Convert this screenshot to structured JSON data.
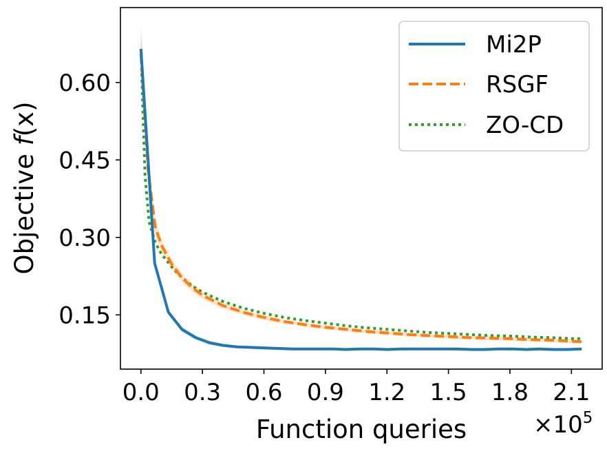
{
  "chart_data": {
    "type": "line",
    "title": "",
    "xlabel": "Function queries",
    "ylabel_prefix": "Objective ",
    "ylabel_fn": "f",
    "ylabel_arg": "(x)",
    "x_offset_text": "×10",
    "x_offset_exp": "5",
    "xlim": [
      -0.1,
      2.25
    ],
    "ylim": [
      0.045,
      0.745
    ],
    "xticks": [
      0.0,
      0.3,
      0.6,
      0.9,
      1.2,
      1.5,
      1.8,
      2.1
    ],
    "xtick_labels": [
      "0.0",
      "0.3",
      "0.6",
      "0.9",
      "1.2",
      "1.5",
      "1.8",
      "2.1"
    ],
    "yticks": [
      0.15,
      0.3,
      0.45,
      0.6
    ],
    "ytick_labels": [
      "0.15",
      "0.30",
      "0.45",
      "0.60"
    ],
    "legend_position": "top-right",
    "grid": false,
    "series": [
      {
        "name": "Mi2P",
        "color": "#1f77b4",
        "style": "solid",
        "x": [
          0.0,
          0.067,
          0.134,
          0.2,
          0.267,
          0.335,
          0.4,
          0.47,
          0.54,
          0.6,
          0.67,
          0.74,
          0.8,
          0.87,
          0.94,
          1.0,
          1.07,
          1.14,
          1.2,
          1.27,
          1.34,
          1.41,
          1.47,
          1.54,
          1.61,
          1.68,
          1.74,
          1.81,
          1.88,
          1.94,
          2.01,
          2.08,
          2.15
        ],
        "values": [
          0.665,
          0.25,
          0.155,
          0.122,
          0.106,
          0.096,
          0.091,
          0.088,
          0.087,
          0.086,
          0.085,
          0.084,
          0.084,
          0.084,
          0.084,
          0.083,
          0.084,
          0.084,
          0.083,
          0.084,
          0.084,
          0.084,
          0.084,
          0.084,
          0.083,
          0.083,
          0.084,
          0.084,
          0.083,
          0.084,
          0.083,
          0.083,
          0.084
        ],
        "band": [
          0.04,
          0.006,
          0.005,
          0.005,
          0.004,
          0.004,
          0.003,
          0.003,
          0.003,
          0.003,
          0.003,
          0.003,
          0.003,
          0.003,
          0.003,
          0.003,
          0.003,
          0.003,
          0.003,
          0.003,
          0.003,
          0.003,
          0.003,
          0.003,
          0.003,
          0.003,
          0.003,
          0.003,
          0.003,
          0.003,
          0.003,
          0.003,
          0.003
        ]
      },
      {
        "name": "RSGF",
        "color": "#ff7f0e",
        "style": "dashed",
        "x": [
          0.0,
          0.035,
          0.07,
          0.1,
          0.15,
          0.2,
          0.25,
          0.3,
          0.4,
          0.5,
          0.6,
          0.7,
          0.8,
          0.9,
          1.0,
          1.1,
          1.2,
          1.3,
          1.4,
          1.5,
          1.6,
          1.7,
          1.8,
          1.9,
          2.0,
          2.1,
          2.15
        ],
        "values": [
          0.655,
          0.43,
          0.32,
          0.285,
          0.248,
          0.222,
          0.203,
          0.188,
          0.168,
          0.155,
          0.145,
          0.137,
          0.131,
          0.126,
          0.122,
          0.118,
          0.115,
          0.112,
          0.11,
          0.108,
          0.106,
          0.105,
          0.104,
          0.102,
          0.101,
          0.099,
          0.098
        ],
        "band": [
          0.05,
          0.03,
          0.015,
          0.012,
          0.01,
          0.009,
          0.008,
          0.007,
          0.006,
          0.005,
          0.005,
          0.004,
          0.004,
          0.004,
          0.004,
          0.004,
          0.004,
          0.004,
          0.004,
          0.004,
          0.004,
          0.004,
          0.004,
          0.004,
          0.004,
          0.004,
          0.004
        ]
      },
      {
        "name": "ZO-CD",
        "color": "#2ca02c",
        "style": "dotted",
        "x": [
          0.0,
          0.02,
          0.04,
          0.07,
          0.1,
          0.15,
          0.2,
          0.25,
          0.3,
          0.4,
          0.5,
          0.6,
          0.7,
          0.8,
          0.9,
          1.0,
          1.1,
          1.2,
          1.3,
          1.4,
          1.5,
          1.6,
          1.7,
          1.8,
          1.9,
          2.0,
          2.1,
          2.15
        ],
        "values": [
          0.665,
          0.42,
          0.33,
          0.29,
          0.268,
          0.243,
          0.222,
          0.206,
          0.194,
          0.176,
          0.163,
          0.153,
          0.145,
          0.139,
          0.134,
          0.129,
          0.125,
          0.122,
          0.119,
          0.116,
          0.114,
          0.112,
          0.11,
          0.109,
          0.107,
          0.106,
          0.104,
          0.104
        ]
      }
    ]
  }
}
